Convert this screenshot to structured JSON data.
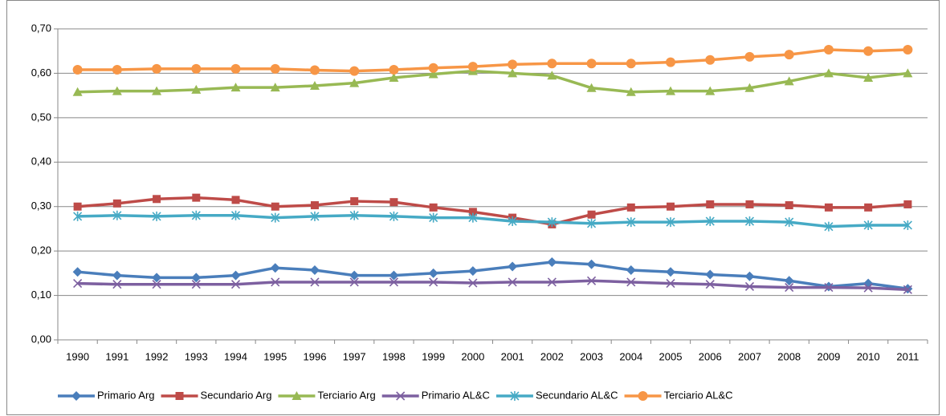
{
  "chart_data": {
    "type": "line",
    "categories": [
      "1990",
      "1991",
      "1992",
      "1993",
      "1994",
      "1995",
      "1996",
      "1997",
      "1998",
      "1999",
      "2000",
      "2001",
      "2002",
      "2003",
      "2004",
      "2005",
      "2006",
      "2007",
      "2008",
      "2009",
      "2010",
      "2011"
    ],
    "series": [
      {
        "name": "Primario Arg",
        "color": "#4a7ebb",
        "values": [
          0.153,
          0.145,
          0.14,
          0.14,
          0.145,
          0.162,
          0.157,
          0.145,
          0.145,
          0.15,
          0.155,
          0.165,
          0.175,
          0.17,
          0.157,
          0.153,
          0.147,
          0.143,
          0.133,
          0.12,
          0.127,
          0.115
        ]
      },
      {
        "name": "Secundario Arg",
        "color": "#be4b48",
        "values": [
          0.3,
          0.307,
          0.317,
          0.32,
          0.315,
          0.3,
          0.303,
          0.312,
          0.31,
          0.298,
          0.288,
          0.275,
          0.26,
          0.282,
          0.298,
          0.3,
          0.305,
          0.305,
          0.303,
          0.298,
          0.298,
          0.305
        ]
      },
      {
        "name": "Terciario Arg",
        "color": "#98b954",
        "values": [
          0.558,
          0.56,
          0.56,
          0.563,
          0.568,
          0.568,
          0.572,
          0.578,
          0.59,
          0.598,
          0.605,
          0.6,
          0.595,
          0.567,
          0.558,
          0.56,
          0.56,
          0.567,
          0.582,
          0.6,
          0.59,
          0.6
        ]
      },
      {
        "name": "Primario AL&C",
        "color": "#7d60a0",
        "values": [
          0.127,
          0.125,
          0.125,
          0.125,
          0.125,
          0.13,
          0.13,
          0.13,
          0.13,
          0.13,
          0.128,
          0.13,
          0.13,
          0.133,
          0.13,
          0.127,
          0.125,
          0.12,
          0.118,
          0.118,
          0.117,
          0.113
        ]
      },
      {
        "name": "Secundario AL&C",
        "color": "#46aac5",
        "values": [
          0.278,
          0.28,
          0.278,
          0.28,
          0.28,
          0.275,
          0.278,
          0.28,
          0.278,
          0.275,
          0.275,
          0.267,
          0.265,
          0.262,
          0.265,
          0.265,
          0.267,
          0.267,
          0.265,
          0.255,
          0.258,
          0.258
        ]
      },
      {
        "name": "Terciario AL&C",
        "color": "#f79646",
        "values": [
          0.608,
          0.608,
          0.61,
          0.61,
          0.61,
          0.61,
          0.607,
          0.605,
          0.608,
          0.612,
          0.615,
          0.62,
          0.622,
          0.622,
          0.622,
          0.625,
          0.63,
          0.637,
          0.642,
          0.653,
          0.65,
          0.653
        ]
      }
    ],
    "ylim": [
      0,
      0.7
    ],
    "yticks": [
      {
        "value": 0,
        "label": "0,00"
      },
      {
        "value": 0.1,
        "label": "0,10"
      },
      {
        "value": 0.2,
        "label": "0,20"
      },
      {
        "value": 0.3,
        "label": "0,30"
      },
      {
        "value": 0.4,
        "label": "0,40"
      },
      {
        "value": 0.5,
        "label": "0,50"
      },
      {
        "value": 0.6,
        "label": "0,60"
      },
      {
        "value": 0.7,
        "label": "0,70"
      }
    ],
    "grid": true,
    "legend": "bottom"
  }
}
